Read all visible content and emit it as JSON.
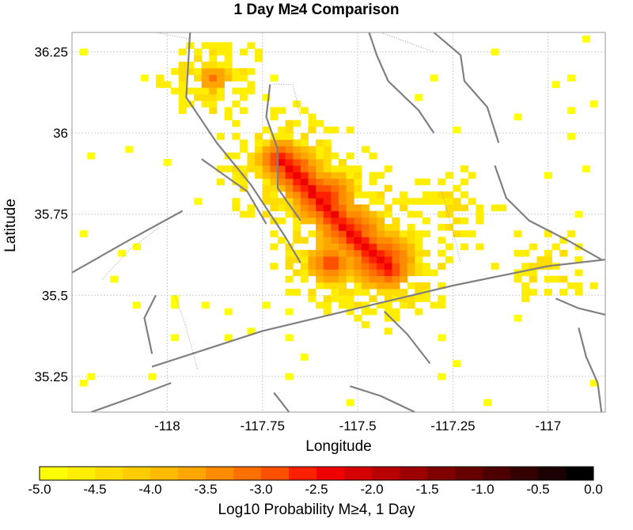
{
  "chart_data": {
    "type": "heatmap",
    "title": "1 Day M≥4 Comparison",
    "xlabel": "Longitude",
    "ylabel": "Latitude",
    "xlim": [
      -118.25,
      -116.85
    ],
    "ylim": [
      35.14,
      36.31
    ],
    "xticks": [
      -118,
      -117.75,
      -117.5,
      -117.25,
      -117
    ],
    "xtick_labels": [
      "-118",
      "-117.75",
      "-117.5",
      "-117.25",
      "-117"
    ],
    "yticks": [
      35.25,
      35.5,
      35.75,
      36,
      36.25
    ],
    "ytick_labels": [
      "35.25",
      "35.5",
      "35.75",
      "36",
      "36.25"
    ],
    "grid": true,
    "cell_size_deg": 0.02,
    "colorbar": {
      "label": "Log10 Probability M≥4, 1 Day",
      "min": -5.0,
      "max": 0.0,
      "ticks": [
        -5.0,
        -4.5,
        -4.0,
        -3.5,
        -3.0,
        -2.5,
        -2.0,
        -1.5,
        -1.0,
        -0.5,
        0.0
      ],
      "tick_labels": [
        "-5.0",
        "-4.5",
        "-4.0",
        "-3.5",
        "-3.0",
        "-2.5",
        "-2.0",
        "-1.5",
        "-1.0",
        "-0.5",
        "0.0"
      ],
      "colors": [
        "#ffff00",
        "#ffee00",
        "#ffdd00",
        "#ffcc00",
        "#ffbb00",
        "#ffa500",
        "#ff8c00",
        "#ff7000",
        "#ff5000",
        "#ff2000",
        "#ee0000",
        "#d40000",
        "#b80000",
        "#9c0000",
        "#800000",
        "#660000",
        "#4d0000",
        "#340000",
        "#1a0000",
        "#000000"
      ]
    },
    "hotspots": [
      {
        "lon": -117.59,
        "lat": 35.8,
        "peak": -2.4,
        "spread_deg": 0.05
      },
      {
        "lon": -117.52,
        "lat": 35.7,
        "peak": -2.4,
        "spread_deg": 0.05
      },
      {
        "lon": -117.44,
        "lat": 35.61,
        "peak": -2.3,
        "spread_deg": 0.05
      },
      {
        "lon": -117.67,
        "lat": 35.89,
        "peak": -2.6,
        "spread_deg": 0.05
      },
      {
        "lon": -117.57,
        "lat": 35.6,
        "peak": -2.6,
        "spread_deg": 0.04
      },
      {
        "lon": -117.88,
        "lat": 36.17,
        "peak": -3.1,
        "spread_deg": 0.04
      },
      {
        "lon": -117.0,
        "lat": 35.6,
        "peak": -4.3,
        "spread_deg": 0.06
      },
      {
        "lon": -117.25,
        "lat": 35.75,
        "peak": -4.3,
        "spread_deg": 0.07
      }
    ],
    "fault_lines": [
      [
        [
          -118.2,
          35.14
        ],
        [
          -118.08,
          35.19
        ],
        [
          -117.99,
          35.23
        ]
      ],
      [
        [
          -118.25,
          35.57
        ],
        [
          -118.1,
          35.67
        ],
        [
          -117.96,
          35.76
        ]
      ],
      [
        [
          -118.04,
          35.28
        ],
        [
          -117.75,
          35.39
        ],
        [
          -117.5,
          35.46
        ],
        [
          -117.25,
          35.53
        ],
        [
          -117.0,
          35.59
        ],
        [
          -116.85,
          35.61
        ]
      ],
      [
        [
          -117.94,
          36.31
        ],
        [
          -117.95,
          36.11
        ],
        [
          -117.87,
          35.97
        ],
        [
          -117.78,
          35.84
        ],
        [
          -117.69,
          35.68
        ],
        [
          -117.65,
          35.6
        ]
      ],
      [
        [
          -117.91,
          35.92
        ],
        [
          -117.85,
          35.87
        ],
        [
          -117.79,
          35.82
        ],
        [
          -117.74,
          35.72
        ]
      ],
      [
        [
          -117.73,
          36.15
        ],
        [
          -117.74,
          36.05
        ],
        [
          -117.71,
          35.95
        ],
        [
          -117.71,
          35.83
        ],
        [
          -117.65,
          35.73
        ]
      ],
      [
        [
          -117.47,
          36.31
        ],
        [
          -117.45,
          36.24
        ],
        [
          -117.42,
          36.16
        ],
        [
          -117.34,
          36.07
        ],
        [
          -117.3,
          36.0
        ]
      ],
      [
        [
          -117.3,
          36.31
        ],
        [
          -117.23,
          36.24
        ],
        [
          -117.22,
          36.16
        ],
        [
          -117.16,
          36.08
        ],
        [
          -117.13,
          35.97
        ]
      ],
      [
        [
          -117.14,
          35.9
        ],
        [
          -117.11,
          35.8
        ],
        [
          -117.05,
          35.73
        ],
        [
          -116.95,
          35.67
        ],
        [
          -116.86,
          35.61
        ]
      ],
      [
        [
          -117.43,
          35.45
        ],
        [
          -117.37,
          35.38
        ],
        [
          -117.31,
          35.29
        ]
      ],
      [
        [
          -117.52,
          35.22
        ],
        [
          -117.44,
          35.19
        ],
        [
          -117.35,
          35.14
        ]
      ],
      [
        [
          -116.92,
          35.4
        ],
        [
          -116.9,
          35.31
        ],
        [
          -116.87,
          35.23
        ],
        [
          -116.86,
          35.14
        ]
      ],
      [
        [
          -118.03,
          35.5
        ],
        [
          -118.06,
          35.43
        ],
        [
          -118.04,
          35.32
        ]
      ],
      [
        [
          -117.68,
          35.14
        ],
        [
          -117.72,
          35.2
        ]
      ],
      [
        [
          -116.98,
          35.49
        ],
        [
          -116.92,
          35.46
        ],
        [
          -116.85,
          35.44
        ]
      ]
    ],
    "thin_lines": [
      [
        [
          -118.17,
          35.55
        ],
        [
          -118.1,
          35.64
        ],
        [
          -118.02,
          35.71
        ]
      ],
      [
        [
          -117.98,
          35.5
        ],
        [
          -117.95,
          35.4
        ],
        [
          -117.92,
          35.27
        ]
      ],
      [
        [
          -117.28,
          35.82
        ],
        [
          -117.25,
          35.7
        ],
        [
          -117.23,
          35.6
        ]
      ],
      [
        [
          -117.72,
          36.15
        ],
        [
          -117.67,
          36.15
        ],
        [
          -117.65,
          36.05
        ]
      ],
      [
        [
          -117.44,
          36.31
        ],
        [
          -117.3,
          36.25
        ]
      ],
      [
        [
          -118.03,
          36.31
        ],
        [
          -117.94,
          36.29
        ]
      ]
    ]
  }
}
